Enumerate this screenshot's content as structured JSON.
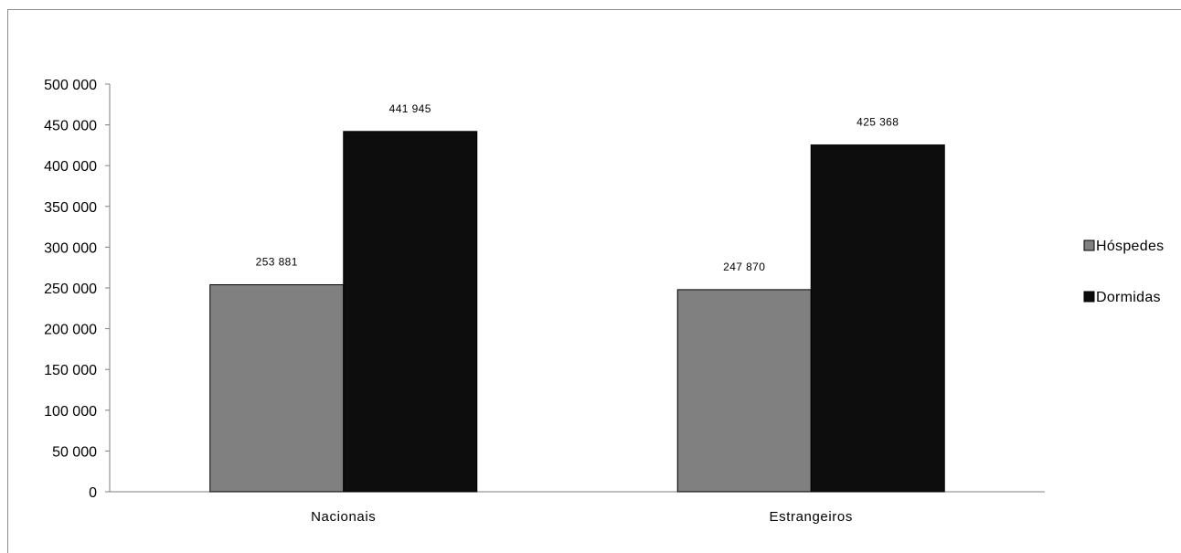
{
  "chart_data": {
    "type": "bar",
    "categories": [
      "Nacionais",
      "Estrangeiros"
    ],
    "series": [
      {
        "name": "Hóspedes",
        "values": [
          253881,
          247870
        ],
        "labels": [
          "253 881",
          "247 870"
        ],
        "color": "#808080"
      },
      {
        "name": "Dormidas",
        "values": [
          441945,
          425368
        ],
        "labels": [
          "441 945",
          "425 368"
        ],
        "color": "#0d0d0d"
      }
    ],
    "ylim": [
      0,
      500000
    ],
    "yticks": [
      0,
      50000,
      100000,
      150000,
      200000,
      250000,
      300000,
      350000,
      400000,
      450000,
      500000
    ],
    "ytick_labels": [
      "0",
      "50 000",
      "100 000",
      "150 000",
      "200 000",
      "250 000",
      "300 000",
      "350 000",
      "400 000",
      "450 000",
      "500 000"
    ],
    "grid": false,
    "legend": {
      "position": "right",
      "items": [
        "Hóspedes",
        "Dormidas"
      ]
    }
  }
}
